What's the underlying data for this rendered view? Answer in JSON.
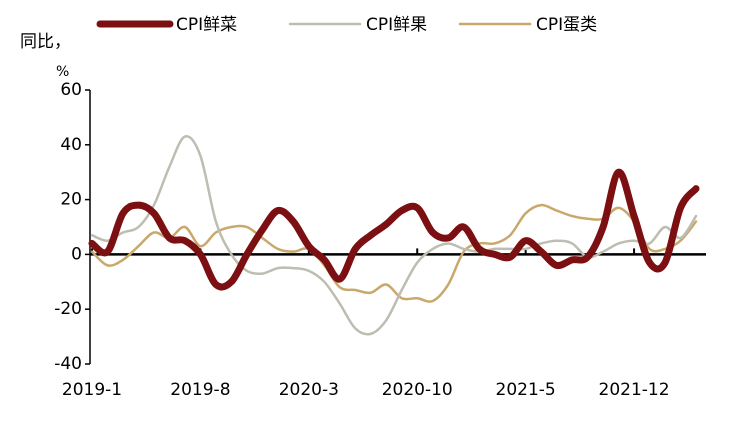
{
  "chart_data": {
    "type": "line",
    "y_label": "同比，",
    "y_unit": "%",
    "categories": [
      "2019-1",
      null,
      null,
      null,
      null,
      null,
      null,
      "2019-8",
      null,
      null,
      null,
      null,
      null,
      null,
      "2020-3",
      null,
      null,
      null,
      null,
      null,
      null,
      "2020-10",
      null,
      null,
      null,
      null,
      null,
      null,
      "2021-5",
      null,
      null,
      null,
      null,
      null,
      null,
      "2021-12",
      null,
      null,
      null,
      null
    ],
    "series": [
      {
        "name": "CPI鲜菜",
        "color": "#7b0f12",
        "width": 7,
        "values": [
          4,
          1,
          15,
          18,
          15,
          6,
          5,
          0,
          -11,
          -10,
          0,
          9,
          16,
          12,
          3,
          -2,
          -9,
          2,
          7,
          11,
          16,
          17,
          8,
          6,
          10,
          2,
          0,
          -1,
          5,
          1,
          -4,
          -2,
          -1,
          10,
          30,
          14,
          -3,
          -3,
          17,
          24
        ]
      },
      {
        "name": "CPI鲜果",
        "color": "#bdbdb1",
        "width": 2.5,
        "values": [
          7,
          5,
          8,
          10,
          18,
          32,
          43,
          36,
          12,
          0,
          -6,
          -7,
          -5,
          -5,
          -6,
          -10,
          -18,
          -27,
          -29,
          -24,
          -13,
          -3,
          2,
          4,
          2,
          1,
          2,
          2,
          2,
          4,
          5,
          4,
          -1,
          1,
          4,
          5,
          4,
          10,
          6,
          14
        ]
      },
      {
        "name": "CPI蛋类",
        "color": "#c9a86b",
        "width": 2.5,
        "values": [
          1,
          -4,
          -2,
          3,
          8,
          6,
          10,
          3,
          8,
          10,
          10,
          6,
          2,
          1,
          2,
          -4,
          -12,
          -13,
          -14,
          -11,
          -16,
          -16,
          -17,
          -11,
          1,
          4,
          4,
          7,
          15,
          18,
          16,
          14,
          13,
          13,
          17,
          12,
          2,
          2,
          5,
          12
        ]
      }
    ],
    "ylim": [
      -40,
      60
    ],
    "yticks": [
      -40,
      -20,
      0,
      20,
      40,
      60
    ],
    "grid": false
  }
}
